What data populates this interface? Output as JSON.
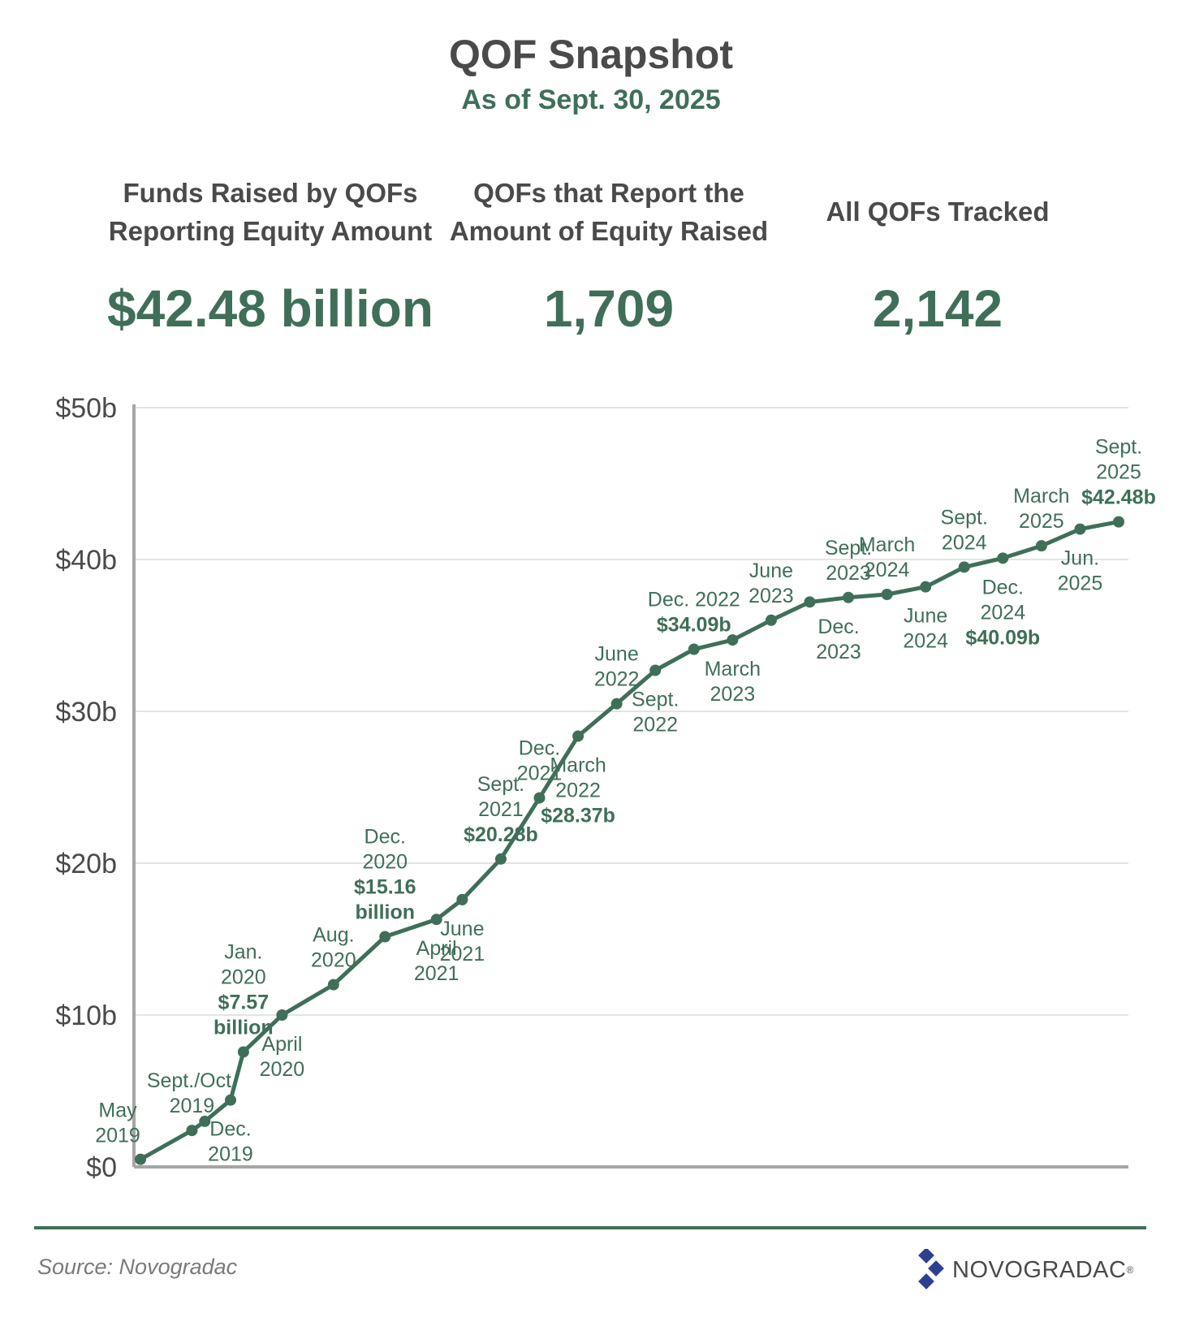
{
  "header": {
    "title": "QOF Snapshot",
    "subtitle": "As of Sept. 30, 2025"
  },
  "stats": [
    {
      "label": "Funds Raised by QOFs Reporting Equity Amount",
      "value": "$42.48 billion"
    },
    {
      "label": "QOFs that Report the Amount of Equity Raised",
      "value": "1,709"
    },
    {
      "label": "All QOFs Tracked",
      "value": "2,142"
    }
  ],
  "footer": {
    "source": "Source: Novogradac",
    "logo_text": "NOVOGRADAC",
    "logo_mark": "®"
  },
  "colors": {
    "line": "#3f6f59",
    "accent": "#3f6f59",
    "axis": "#a6a6a6",
    "grid": "#e3e3e3",
    "label": "#3f6f59"
  },
  "chart_data": {
    "type": "line",
    "ylim": [
      0,
      50
    ],
    "yticks": [
      0,
      10,
      20,
      30,
      40,
      50
    ],
    "ytick_labels": [
      "$0",
      "$10b",
      "$20b",
      "$30b",
      "$40b",
      "$50b"
    ],
    "grid": true,
    "series": [
      {
        "points": [
          {
            "date": "2019-05",
            "value": 0.5,
            "label": [
              "May",
              "2019"
            ],
            "pos": "left"
          },
          {
            "date": "2019-09",
            "value": 2.4,
            "label": [
              "Sept./Oct.",
              "2019"
            ],
            "pos": "top"
          },
          {
            "date": "2019-10",
            "value": 3.0
          },
          {
            "date": "2019-12",
            "value": 4.4,
            "label": [
              "Dec.",
              "2019"
            ],
            "pos": "bottom"
          },
          {
            "date": "2020-01",
            "value": 7.57,
            "label": [
              "Jan.",
              "2020"
            ],
            "value_label": [
              "$7.57",
              "billion"
            ],
            "pos": "top"
          },
          {
            "date": "2020-04",
            "value": 10.0,
            "label": [
              "April",
              "2020"
            ],
            "pos": "bottom"
          },
          {
            "date": "2020-08",
            "value": 12.0,
            "label": [
              "Aug.",
              "2020"
            ],
            "pos": "top"
          },
          {
            "date": "2020-12",
            "value": 15.16,
            "label": [
              "Dec.",
              "2020"
            ],
            "value_label": [
              "$15.16",
              "billion"
            ],
            "pos": "top"
          },
          {
            "date": "2021-04",
            "value": 16.3,
            "label": [
              "April",
              "2021"
            ],
            "pos": "bottom"
          },
          {
            "date": "2021-06",
            "value": 17.6,
            "label": [
              "June",
              "2021"
            ],
            "pos": "bottom"
          },
          {
            "date": "2021-09",
            "value": 20.28,
            "label": [
              "Sept.",
              "2021"
            ],
            "value_label": [
              "$20.28b"
            ],
            "pos": "top"
          },
          {
            "date": "2021-12",
            "value": 24.3,
            "label": [
              "Dec.",
              "2021"
            ],
            "pos": "top"
          },
          {
            "date": "2022-03",
            "value": 28.37,
            "label": [
              "March",
              "2022"
            ],
            "value_label": [
              "$28.37b"
            ],
            "pos": "bottom"
          },
          {
            "date": "2022-06",
            "value": 30.5,
            "label": [
              "June",
              "2022"
            ],
            "pos": "top"
          },
          {
            "date": "2022-09",
            "value": 32.7,
            "label": [
              "Sept.",
              "2022"
            ],
            "pos": "bottom"
          },
          {
            "date": "2022-12",
            "value": 34.09,
            "label": [
              "Dec. 2022"
            ],
            "value_label": [
              "$34.09b"
            ],
            "pos": "top"
          },
          {
            "date": "2023-03",
            "value": 34.7,
            "label": [
              "March",
              "2023"
            ],
            "pos": "bottom"
          },
          {
            "date": "2023-06",
            "value": 36.0,
            "label": [
              "June",
              "2023"
            ],
            "pos": "top"
          },
          {
            "date": "2023-09",
            "value": 37.2
          },
          {
            "date": "2023-12",
            "value": 37.5,
            "label": [
              "Sept.",
              "2023"
            ],
            "pos": "top",
            "label2": [
              "Dec.",
              "2023"
            ]
          },
          {
            "date": "2024-03",
            "value": 37.7,
            "label": [
              "March",
              "2024"
            ],
            "pos": "top"
          },
          {
            "date": "2024-06",
            "value": 38.2,
            "label": [
              "June",
              "2024"
            ],
            "pos": "bottom"
          },
          {
            "date": "2024-09",
            "value": 39.5,
            "label": [
              "Sept.",
              "2024"
            ],
            "pos": "top"
          },
          {
            "date": "2024-12",
            "value": 40.09,
            "label": [
              "Dec.",
              "2024"
            ],
            "value_label": [
              "$40.09b"
            ],
            "pos": "bottom"
          },
          {
            "date": "2025-03",
            "value": 40.9,
            "label": [
              "March",
              "2025"
            ],
            "pos": "top"
          },
          {
            "date": "2025-06",
            "value": 42.0,
            "label": [
              "Jun.",
              "2025"
            ],
            "pos": "bottom"
          },
          {
            "date": "2025-09",
            "value": 42.48,
            "label": [
              "Sept.",
              "2025"
            ],
            "value_label": [
              "$42.48b"
            ],
            "pos": "top"
          }
        ]
      }
    ]
  }
}
